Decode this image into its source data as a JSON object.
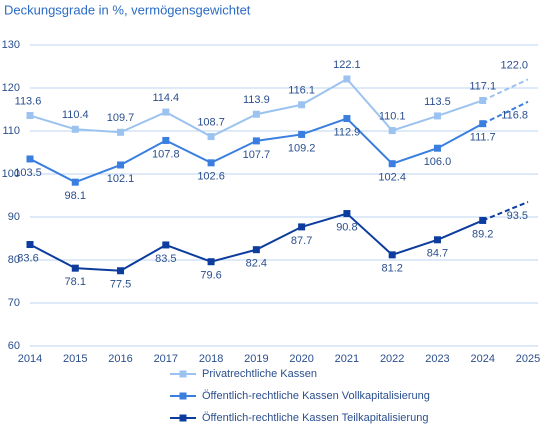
{
  "chart_data": {
    "type": "line",
    "title": "Deckungsgrade in %, vermögensgewichtet",
    "x": [
      2014,
      2015,
      2016,
      2017,
      2018,
      2019,
      2020,
      2021,
      2022,
      2023,
      2024,
      2025
    ],
    "xlim": [
      2014,
      2025
    ],
    "xticks": [
      2014,
      2015,
      2016,
      2017,
      2018,
      2019,
      2020,
      2021,
      2022,
      2023,
      2024,
      2025
    ],
    "ylim": [
      60,
      130
    ],
    "yticks": [
      60,
      70,
      80,
      90,
      100,
      110,
      120,
      130
    ],
    "grid": true,
    "projection_from": 2024,
    "series": [
      {
        "name": "Privatrechtliche Kassen",
        "color": "#9cc3ef",
        "values": [
          113.6,
          110.4,
          109.7,
          114.4,
          108.7,
          113.9,
          116.1,
          122.1,
          110.1,
          113.5,
          117.1,
          122.0
        ],
        "value_labels": [
          "113.6",
          "110.4",
          "109.7",
          "114.4",
          "108.7",
          "113.9",
          "116.1",
          "122.1",
          "110.1",
          "113.5",
          "117.1",
          "122.0"
        ]
      },
      {
        "name": "Öffentlich-rechtliche Kassen Vollkapitalisierung",
        "color": "#3a7fe0",
        "values": [
          103.5,
          98.1,
          102.1,
          107.8,
          102.6,
          107.7,
          109.2,
          112.9,
          102.4,
          106.0,
          111.7,
          116.8
        ],
        "value_labels": [
          "103.5",
          "98.1",
          "102.1",
          "107.8",
          "102.6",
          "107.7",
          "109.2",
          "112.9",
          "102.4",
          "106.0",
          "111.7",
          "116.8"
        ]
      },
      {
        "name": "Öffentlich-rechtliche Kassen Teilkapitalisierung",
        "color": "#0b3c9e",
        "values": [
          83.6,
          78.1,
          77.5,
          83.5,
          79.6,
          82.4,
          87.7,
          90.8,
          81.2,
          84.7,
          89.2,
          93.5
        ],
        "value_labels": [
          "83.6",
          "78.1",
          "77.5",
          "83.5",
          "79.6",
          "82.4",
          "87.7",
          "90.8",
          "81.2",
          "84.7",
          "89.2",
          "93.5"
        ]
      }
    ]
  }
}
